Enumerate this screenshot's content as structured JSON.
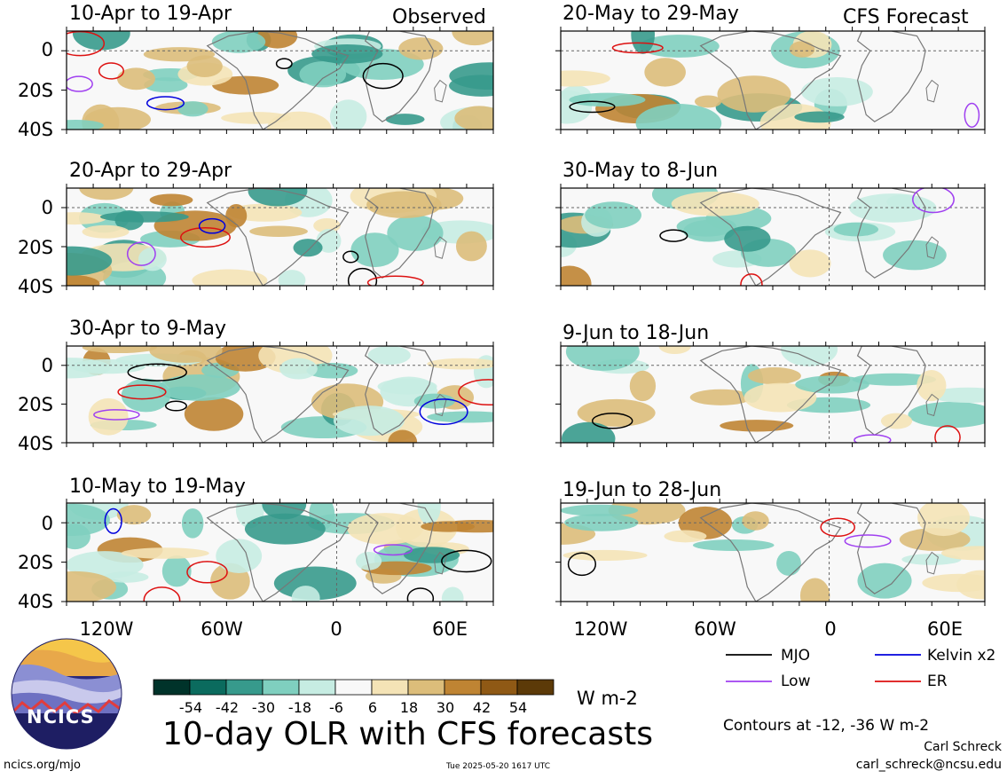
{
  "panels": {
    "observed": [
      {
        "period": "10-Apr to 19-Apr"
      },
      {
        "period": "20-Apr to 29-Apr"
      },
      {
        "period": "30-Apr to 9-May"
      },
      {
        "period": "10-May to 19-May"
      }
    ],
    "forecast": [
      {
        "period": "20-May to 29-May"
      },
      {
        "period": "30-May to 8-Jun"
      },
      {
        "period": "9-Jun to 18-Jun"
      },
      {
        "period": "19-Jun to 28-Jun"
      }
    ],
    "observed_label": "Observed",
    "forecast_label": "CFS Forecast"
  },
  "axes": {
    "y_ticks": [
      "0",
      "20S",
      "40S"
    ],
    "x_ticks": [
      "120W",
      "60W",
      "0",
      "60E"
    ]
  },
  "legend": {
    "mjo": "MJO",
    "kelvin": "Kelvin x2",
    "low": "Low",
    "er": "ER",
    "colors": {
      "mjo": "#000000",
      "kelvin": "#0000dd",
      "low": "#a040f0",
      "er": "#dd1111"
    }
  },
  "colorbar": {
    "ticks": [
      "-54",
      "-42",
      "-30",
      "-18",
      "-6",
      "6",
      "18",
      "30",
      "42",
      "54"
    ],
    "units": "W m-2",
    "colors": [
      "#00332a",
      "#0b6b5e",
      "#379a8c",
      "#7fcfbf",
      "#c6ece2",
      "#f8f8f8",
      "#f4e3b6",
      "#dcbd7a",
      "#bf8433",
      "#8f5915",
      "#5c3a08"
    ]
  },
  "main_title": "10-day OLR with CFS forecasts",
  "contours_note": "Contours at -12, -36 W m-2",
  "author": "Carl Schreck",
  "email": "carl_schreck@ncsu.edu",
  "url": "ncics.org/mjo",
  "timestamp": "Tue 2025-05-20 1617 UTC",
  "logo_text": "NCICS"
}
